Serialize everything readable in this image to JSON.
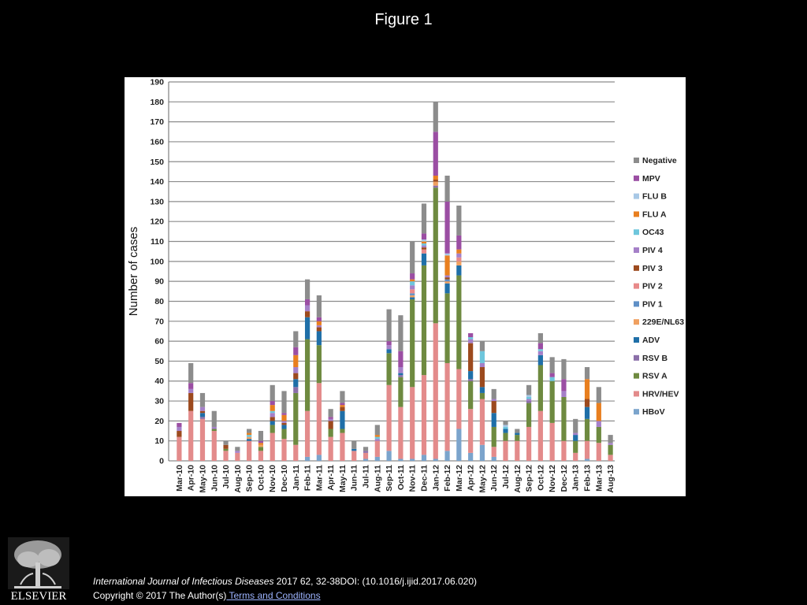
{
  "title": "Figure 1",
  "chart_data": {
    "type": "bar",
    "stacked": true,
    "ylabel": "Number of cases",
    "xlabel": "",
    "ylim": [
      0,
      190
    ],
    "yticks": [
      0,
      10,
      20,
      30,
      40,
      50,
      60,
      70,
      80,
      90,
      100,
      110,
      120,
      130,
      140,
      150,
      160,
      170,
      180,
      190
    ],
    "grid": true,
    "legend_position": "right",
    "categories": [
      "Mar-10",
      "Apr-10",
      "May-10",
      "Jun-10",
      "Jul-10",
      "Aug-10",
      "Sep-10",
      "Oct-10",
      "Nov-10",
      "Dec-10",
      "Jan-11",
      "Feb-11",
      "Mar-11",
      "Apr-11",
      "May-11",
      "Jun-11",
      "Jul-11",
      "Aug-11",
      "Sep-11",
      "Oct-11",
      "Nov-11",
      "Dec-11",
      "Jan-12",
      "Feb-12",
      "Mar-12",
      "Apr-12",
      "May-12",
      "Jun-12",
      "Jul-12",
      "Aug-12",
      "Sep-12",
      "Oct-12",
      "Nov-12",
      "Dec-12",
      "Jan-13",
      "Feb-13",
      "Mar-13",
      "Aug-13"
    ],
    "series": [
      {
        "name": "HBoV",
        "color": "#7ba4cc",
        "values": [
          0,
          0,
          0,
          0,
          0,
          0,
          0,
          0,
          0,
          0,
          0,
          2,
          3,
          0,
          0,
          0,
          1,
          2,
          5,
          1,
          1,
          3,
          1,
          5,
          16,
          4,
          8,
          2,
          0,
          0,
          0,
          0,
          0,
          0,
          0,
          1,
          0,
          0
        ]
      },
      {
        "name": "HRV/HEV",
        "color": "#e38b8b",
        "values": [
          12,
          25,
          21,
          15,
          5,
          4,
          10,
          5,
          14,
          11,
          8,
          23,
          36,
          12,
          14,
          5,
          3,
          8,
          33,
          26,
          36,
          40,
          68,
          44,
          30,
          22,
          23,
          5,
          10,
          10,
          17,
          25,
          19,
          10,
          4,
          9,
          9,
          3
        ]
      },
      {
        "name": "RSV A",
        "color": "#6e8a40",
        "values": [
          0,
          0,
          0,
          1,
          1,
          0,
          0,
          2,
          4,
          5,
          26,
          36,
          19,
          4,
          2,
          0,
          0,
          0,
          16,
          15,
          44,
          55,
          68,
          35,
          47,
          14,
          3,
          10,
          4,
          3,
          12,
          23,
          21,
          22,
          6,
          11,
          8,
          5
        ]
      },
      {
        "name": "RSV B",
        "color": "#8b6fa9",
        "values": [
          0,
          0,
          1,
          0,
          0,
          0,
          0,
          0,
          0,
          0,
          3,
          0,
          0,
          0,
          0,
          0,
          1,
          0,
          0,
          1,
          0,
          0,
          1,
          0,
          0,
          1,
          0,
          0,
          0,
          0,
          1,
          0,
          0,
          0,
          0,
          0,
          0,
          0
        ]
      },
      {
        "name": "ADV",
        "color": "#1f6fa8",
        "values": [
          0,
          0,
          2,
          0,
          0,
          0,
          1,
          0,
          2,
          2,
          4,
          11,
          7,
          0,
          9,
          1,
          0,
          0,
          2,
          1,
          1,
          6,
          0,
          5,
          5,
          4,
          3,
          7,
          2,
          1,
          0,
          5,
          0,
          0,
          3,
          6,
          0,
          0
        ]
      },
      {
        "name": "229E/NL63",
        "color": "#f0a060",
        "values": [
          0,
          0,
          0,
          0,
          0,
          0,
          1,
          1,
          0,
          0,
          0,
          0,
          0,
          0,
          0,
          0,
          0,
          0,
          0,
          0,
          1,
          0,
          2,
          1,
          2,
          0,
          0,
          0,
          0,
          0,
          0,
          0,
          0,
          0,
          0,
          0,
          0,
          0
        ]
      },
      {
        "name": "PIV 1",
        "color": "#5f8fc6",
        "values": [
          0,
          0,
          0,
          0,
          0,
          0,
          0,
          0,
          0,
          0,
          0,
          0,
          0,
          0,
          0,
          0,
          0,
          0,
          0,
          0,
          1,
          0,
          0,
          1,
          0,
          0,
          0,
          0,
          0,
          0,
          0,
          0,
          0,
          0,
          0,
          0,
          0,
          0
        ]
      },
      {
        "name": "PIV 2",
        "color": "#e88a8a",
        "values": [
          0,
          0,
          0,
          0,
          0,
          0,
          0,
          0,
          0,
          0,
          0,
          0,
          0,
          0,
          0,
          0,
          0,
          0,
          0,
          0,
          2,
          2,
          0,
          0,
          2,
          0,
          0,
          0,
          0,
          0,
          0,
          0,
          0,
          0,
          0,
          0,
          0,
          0
        ]
      },
      {
        "name": "PIV 3",
        "color": "#9c4a1e",
        "values": [
          3,
          9,
          1,
          0,
          2,
          0,
          0,
          0,
          2,
          1,
          3,
          3,
          2,
          4,
          2,
          0,
          0,
          0,
          0,
          0,
          0,
          1,
          1,
          1,
          0,
          14,
          10,
          6,
          0,
          0,
          0,
          0,
          0,
          0,
          0,
          4,
          0,
          0
        ]
      },
      {
        "name": "PIV 4",
        "color": "#a580c8",
        "values": [
          2,
          2,
          2,
          1,
          0,
          1,
          0,
          0,
          2,
          1,
          3,
          3,
          1,
          1,
          0,
          0,
          0,
          1,
          2,
          3,
          2,
          1,
          0,
          1,
          2,
          2,
          2,
          1,
          0,
          0,
          1,
          2,
          0,
          3,
          1,
          0,
          3,
          1
        ]
      },
      {
        "name": "OC43",
        "color": "#6ec6dc",
        "values": [
          0,
          0,
          0,
          0,
          0,
          0,
          1,
          0,
          1,
          0,
          0,
          0,
          0,
          0,
          0,
          0,
          0,
          1,
          0,
          0,
          2,
          1,
          0,
          0,
          0,
          1,
          6,
          0,
          1,
          0,
          1,
          1,
          2,
          0,
          0,
          0,
          0,
          0
        ]
      },
      {
        "name": "FLU A",
        "color": "#e87f1f",
        "values": [
          0,
          0,
          0,
          0,
          0,
          0,
          1,
          1,
          3,
          3,
          6,
          0,
          2,
          0,
          1,
          0,
          0,
          1,
          0,
          0,
          1,
          1,
          2,
          10,
          2,
          0,
          0,
          0,
          0,
          0,
          0,
          0,
          0,
          0,
          0,
          10,
          9,
          0
        ]
      },
      {
        "name": "FLU B",
        "color": "#a8c8e6",
        "values": [
          0,
          0,
          0,
          0,
          0,
          0,
          0,
          0,
          0,
          0,
          0,
          0,
          0,
          0,
          0,
          0,
          0,
          0,
          0,
          0,
          0,
          1,
          0,
          1,
          0,
          0,
          0,
          0,
          1,
          0,
          1,
          0,
          0,
          0,
          0,
          0,
          0,
          0
        ]
      },
      {
        "name": "MPV",
        "color": "#9b4ea3",
        "values": [
          2,
          3,
          0,
          0,
          0,
          0,
          0,
          1,
          2,
          1,
          4,
          3,
          2,
          1,
          1,
          0,
          0,
          0,
          2,
          8,
          3,
          3,
          22,
          26,
          7,
          2,
          0,
          0,
          0,
          0,
          0,
          3,
          2,
          6,
          0,
          0,
          0,
          0
        ]
      },
      {
        "name": "Negative",
        "color": "#8c8c8c",
        "values": [
          0,
          10,
          7,
          8,
          2,
          2,
          2,
          5,
          8,
          11,
          8,
          10,
          11,
          4,
          6,
          4,
          2,
          5,
          16,
          18,
          16,
          15,
          15,
          13,
          15,
          0,
          5,
          5,
          2,
          2,
          5,
          5,
          8,
          10,
          7,
          6,
          8,
          4
        ]
      }
    ],
    "legend_order": [
      "Negative",
      "MPV",
      "FLU B",
      "FLU A",
      "OC43",
      "PIV 4",
      "PIV 3",
      "PIV 2",
      "PIV 1",
      "229E/NL63",
      "ADV",
      "RSV B",
      "RSV A",
      "HRV/HEV",
      "HBoV"
    ]
  },
  "logo": {
    "text": "ELSEVIER",
    "icon": "elsevier-tree-icon"
  },
  "footer": {
    "citation_journal": "International Journal of Infectious Diseases",
    "citation_detail": " 2017 62, 32-38DOI: (10.1016/j.ijid.2017.06.020)",
    "copyright_text": "Copyright © 2017 The Author(s)",
    "terms_link": " Terms and Conditions"
  }
}
